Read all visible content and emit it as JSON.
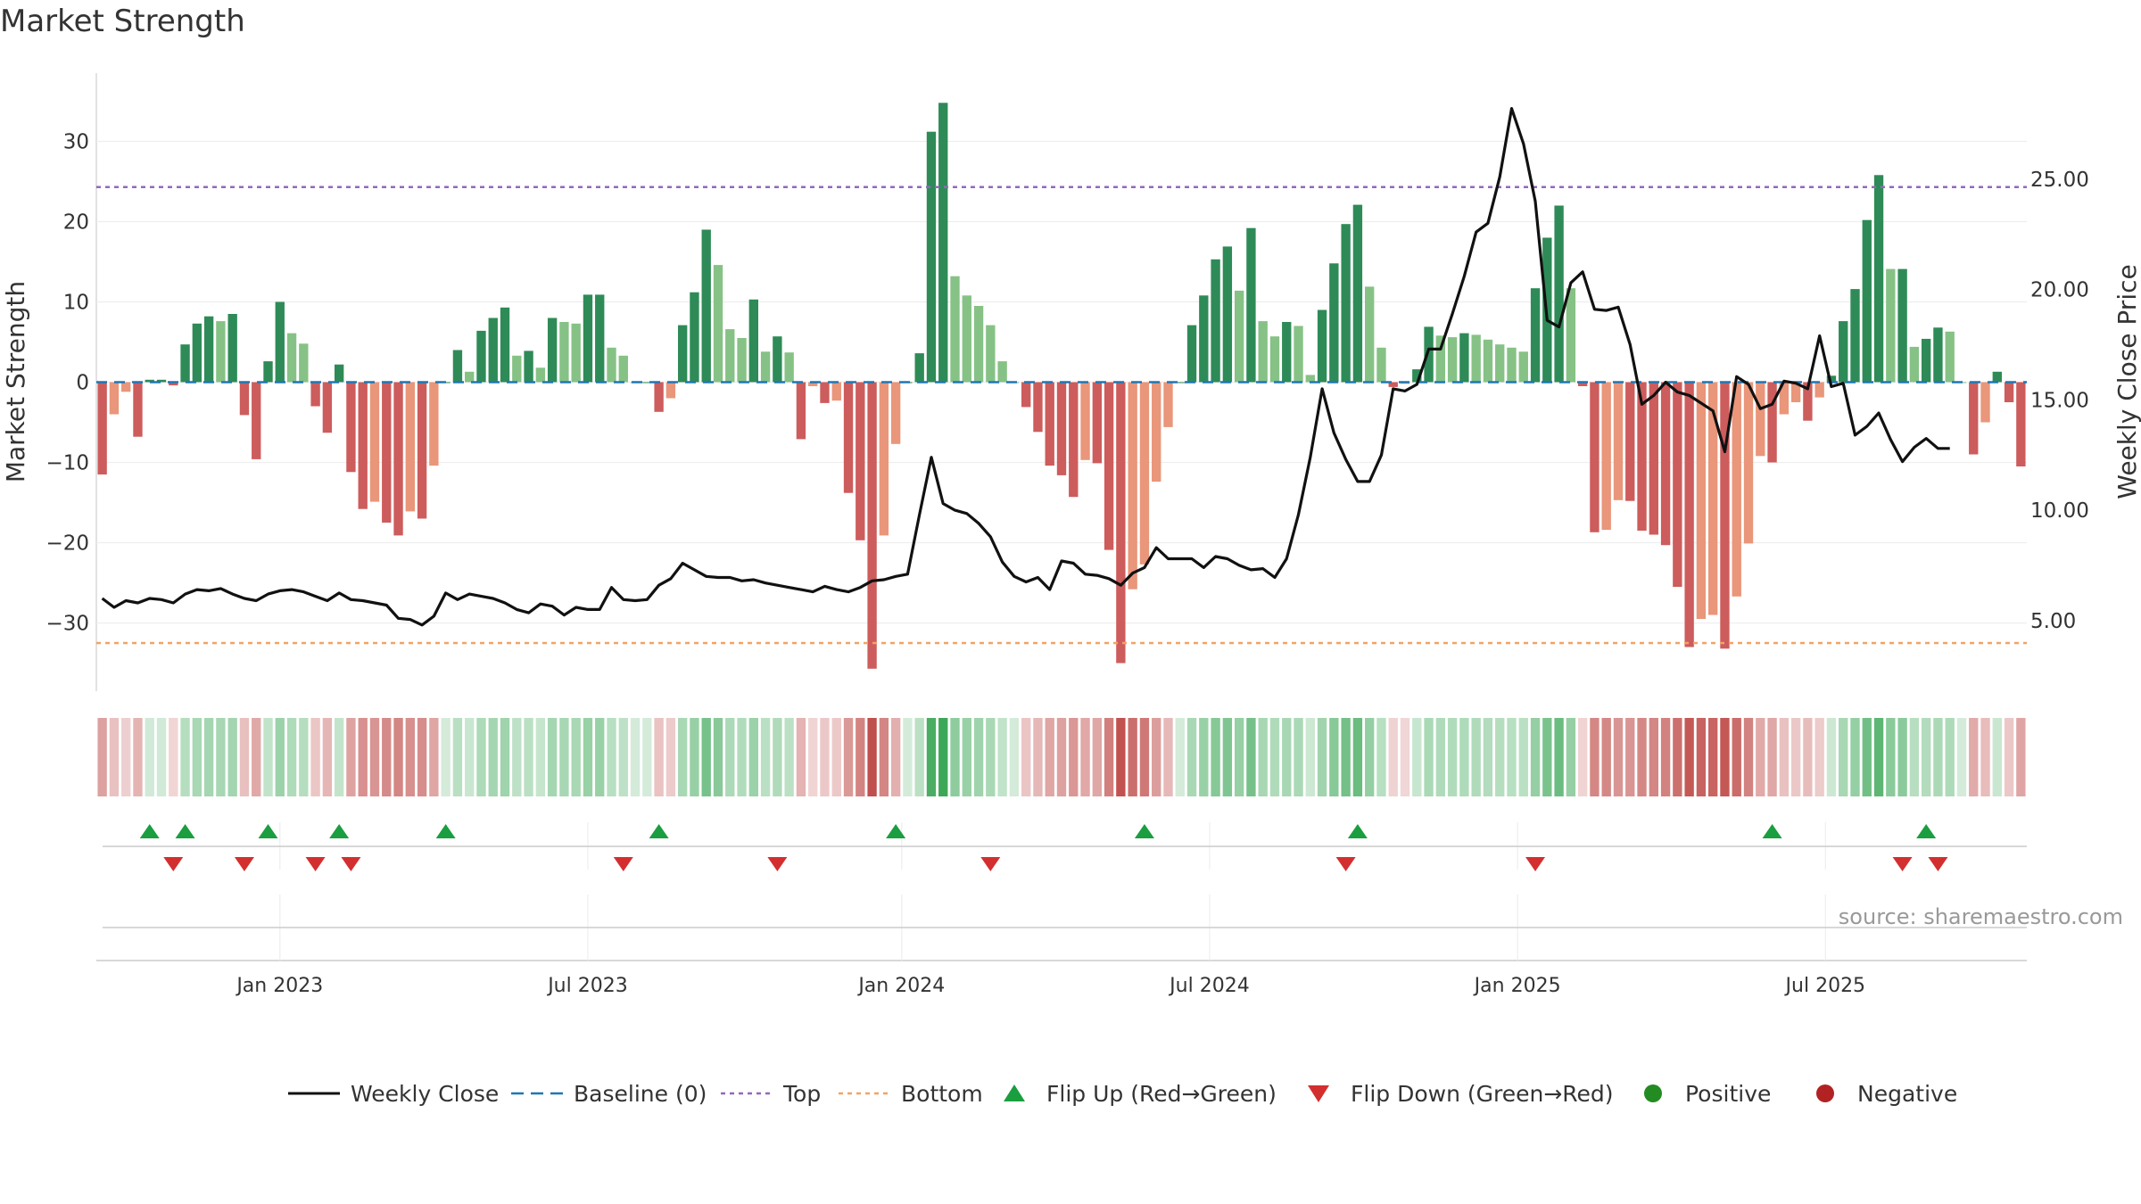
{
  "title": "Market Strength",
  "source": "source: sharemaestro.com",
  "chart_data": {
    "type": "bar+line",
    "title": "Market Strength",
    "left_axis": {
      "label": "Market Strength",
      "ticks": [
        30,
        20,
        10,
        0,
        -10,
        -20,
        -30
      ],
      "tick_labels": [
        "30",
        "20",
        "10",
        "0",
        "−10",
        "−20",
        "−30"
      ],
      "range": [
        -38.5,
        38.5
      ]
    },
    "right_axis": {
      "label": "Weekly Close Price",
      "ticks": [
        5,
        10,
        15,
        20,
        25
      ],
      "tick_labels": [
        "5.00",
        "10.00",
        "15.00",
        "20.00",
        "25.00"
      ],
      "range": [
        1.8,
        29.8
      ]
    },
    "x_axis": {
      "labels": [
        "Jan 2023",
        "Jul 2023",
        "Jan 2024",
        "Jul 2024",
        "Jan 2025",
        "Jul 2025"
      ],
      "label_week_index": [
        15,
        41,
        67.5,
        93.5,
        119.5,
        145.5
      ]
    },
    "reference_lines": {
      "top": 24.3,
      "bottom": -32.5,
      "baseline": 0
    },
    "strength": [
      -11.5,
      -4,
      -1.2,
      -6.8,
      0.3,
      0.3,
      -0.4,
      4.7,
      7.3,
      8.2,
      7.6,
      8.5,
      -4.1,
      -9.6,
      2.6,
      10,
      6.1,
      4.8,
      -3,
      -6.3,
      2.2,
      -11.2,
      -15.8,
      -14.9,
      -17.5,
      -19.1,
      -16.1,
      -17,
      -10.4,
      0,
      4,
      1.3,
      6.4,
      8,
      9.3,
      3.3,
      3.9,
      1.8,
      8,
      7.5,
      7.3,
      10.9,
      10.9,
      4.3,
      3.3,
      0,
      0,
      -3.7,
      -2,
      7.1,
      11.2,
      19,
      14.6,
      6.6,
      5.5,
      10.3,
      3.8,
      5.7,
      3.7,
      -7.1,
      -0.5,
      -2.6,
      -2.3,
      -13.8,
      -19.7,
      -35.7,
      -19.1,
      -7.7,
      0,
      3.6,
      31.2,
      34.8,
      13.2,
      10.8,
      9.5,
      7.1,
      2.6,
      0,
      -3.1,
      -6.2,
      -10.4,
      -11.6,
      -14.3,
      -9.7,
      -10.1,
      -20.9,
      -35,
      -25.8,
      -22.7,
      -12.4,
      -5.6,
      0,
      7.1,
      10.8,
      15.3,
      16.9,
      11.4,
      19.2,
      7.6,
      5.7,
      7.5,
      7,
      0.9,
      9,
      14.8,
      19.7,
      22.1,
      11.9,
      4.3,
      -0.6,
      -0.2,
      1.6,
      6.9,
      5.8,
      5.6,
      6.1,
      5.9,
      5.3,
      4.7,
      4.3,
      3.8,
      11.7,
      18,
      22,
      11.7,
      -0.5,
      -18.7,
      -18.4,
      -14.7,
      -14.8,
      -18.5,
      -19,
      -20.3,
      -25.5,
      -33,
      -29.5,
      -29,
      -33.2,
      -26.7,
      -20.1,
      -9.2,
      -10,
      -4,
      -2.5,
      -4.8,
      -1.9,
      0.8,
      7.6,
      11.6,
      20.2,
      25.8,
      14.1,
      14.1,
      4.4,
      5.4,
      6.8,
      6.3,
      0,
      -9,
      -5,
      1.3,
      -2.5,
      -10.5
    ],
    "weekly_close": [
      6.0,
      5.6,
      5.9,
      5.8,
      6.0,
      5.95,
      5.8,
      6.2,
      6.4,
      6.35,
      6.45,
      6.2,
      6.0,
      5.9,
      6.2,
      6.35,
      6.4,
      6.3,
      6.1,
      5.9,
      6.25,
      5.95,
      5.9,
      5.8,
      5.7,
      5.1,
      5.05,
      4.8,
      5.2,
      6.25,
      5.95,
      6.2,
      6.1,
      6.0,
      5.8,
      5.5,
      5.35,
      5.75,
      5.65,
      5.25,
      5.6,
      5.5,
      5.5,
      6.5,
      5.95,
      5.9,
      5.95,
      6.6,
      6.9,
      7.6,
      7.3,
      7.0,
      6.95,
      6.95,
      6.8,
      6.85,
      6.7,
      6.6,
      6.5,
      6.4,
      6.3,
      6.55,
      6.4,
      6.3,
      6.5,
      6.8,
      6.85,
      7.0,
      7.1,
      9.8,
      12.4,
      10.3,
      10.0,
      9.85,
      9.4,
      8.8,
      7.65,
      7.0,
      6.75,
      6.95,
      6.4,
      7.7,
      7.6,
      7.1,
      7.05,
      6.9,
      6.6,
      7.15,
      7.4,
      8.3,
      7.8,
      7.8,
      7.8,
      7.4,
      7.9,
      7.8,
      7.5,
      7.3,
      7.35,
      6.95,
      7.8,
      9.8,
      12.4,
      15.5,
      13.5,
      12.3,
      11.3,
      11.3,
      12.5,
      15.5,
      15.4,
      15.7,
      17.3,
      17.3,
      18.9,
      20.6,
      22.6,
      23.0,
      25.1,
      28.2,
      26.6,
      24.0,
      18.6,
      18.3,
      20.3,
      20.8,
      19.1,
      19.05,
      19.2,
      17.5,
      14.8,
      15.2,
      15.8,
      15.35,
      15.2,
      14.85,
      14.5,
      12.65,
      16.05,
      15.7,
      14.6,
      14.8,
      15.85,
      15.75,
      15.5,
      17.9,
      15.6,
      15.75,
      13.4,
      13.8,
      14.4,
      13.2,
      12.2,
      12.85,
      13.25,
      12.8,
      12.8
    ],
    "flips": {
      "up_week_index": [
        4,
        7,
        14,
        20,
        29,
        47,
        67,
        88,
        106,
        141,
        154
      ],
      "down_week_index": [
        6,
        12,
        18,
        21,
        44,
        57,
        75,
        105,
        121,
        152,
        155
      ]
    },
    "legend": [
      "Weekly Close",
      "Baseline (0)",
      "Top",
      "Bottom",
      "Flip Up (Red→Green)",
      "Flip Down (Green→Red)",
      "Positive",
      "Negative"
    ],
    "colors": {
      "pos_strong": "#2e8b57",
      "pos_weak": "#86c285",
      "neg_strong": "#cd5c5c",
      "neg_weak": "#e9967a",
      "line": "#111111",
      "baseline": "#1f77b4",
      "top": "#9467bd",
      "bottom": "#f4a261",
      "flip_up": "#1a9e3f",
      "flip_down": "#d32f2f",
      "positive": "#228b22",
      "negative": "#b22222"
    }
  }
}
